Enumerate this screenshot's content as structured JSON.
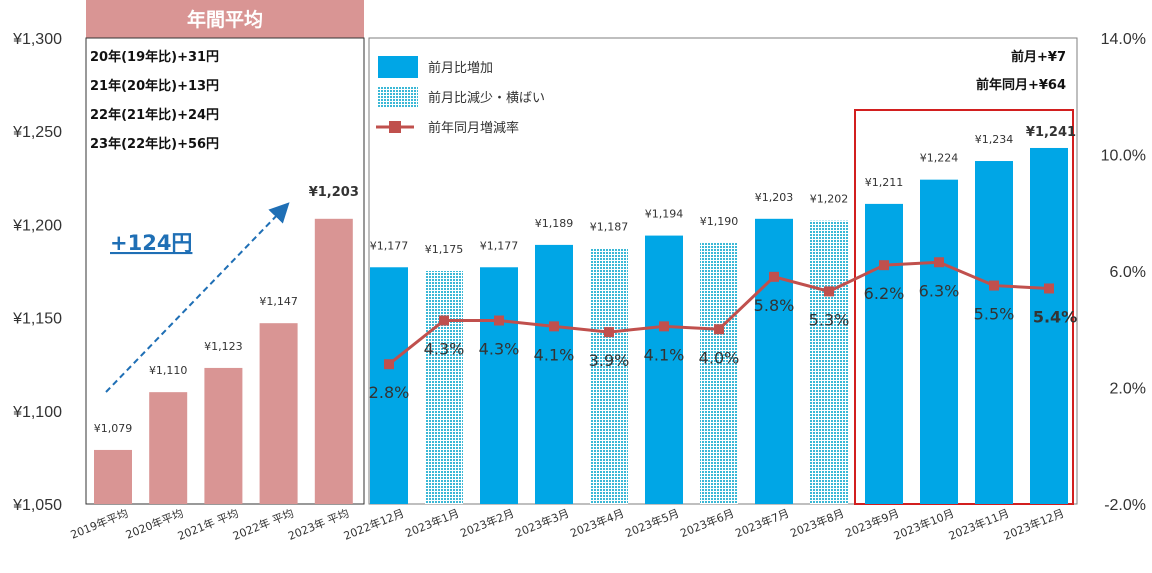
{
  "chart_data": {
    "type": "bar",
    "panel_title": "年間平均",
    "categories": [
      "2019年平均",
      "2020年平均",
      "2021年 平均",
      "2022年 平均",
      "2023年 平均",
      "2022年12月",
      "2023年1月",
      "2023年2月",
      "2023年3月",
      "2023年4月",
      "2023年5月",
      "2023年6月",
      "2023年7月",
      "2023年8月",
      "2023年9月",
      "2023年10月",
      "2023年11月",
      "2023年12月"
    ],
    "values": [
      1079,
      1110,
      1123,
      1147,
      1203,
      1177,
      1175,
      1177,
      1189,
      1187,
      1194,
      1190,
      1203,
      1202,
      1211,
      1224,
      1234,
      1241
    ],
    "value_labels": [
      "¥1,079",
      "¥1,110",
      "¥1,123",
      "¥1,147",
      "¥1,203",
      "¥1,177",
      "¥1,175",
      "¥1,177",
      "¥1,189",
      "¥1,187",
      "¥1,194",
      "¥1,190",
      "¥1,203",
      "¥1,202",
      "¥1,211",
      "¥1,224",
      "¥1,234",
      "¥1,241"
    ],
    "bar_kind": [
      "annual",
      "annual",
      "annual",
      "annual",
      "annual",
      "up",
      "down",
      "up",
      "up",
      "down",
      "up",
      "down",
      "up",
      "down",
      "up",
      "up",
      "up",
      "up"
    ],
    "yoy_rate": [
      null,
      null,
      null,
      null,
      null,
      2.8,
      4.3,
      4.3,
      4.1,
      3.9,
      4.1,
      4.0,
      5.8,
      5.3,
      6.2,
      6.3,
      5.5,
      5.4
    ],
    "yoy_labels": [
      "",
      "",
      "",
      "",
      "",
      "2.8%",
      "4.3%",
      "4.3%",
      "4.1%",
      "3.9%",
      "4.1%",
      "4.0%",
      "5.8%",
      "5.3%",
      "6.2%",
      "6.3%",
      "5.5%",
      "5.4%"
    ],
    "ylim": [
      1050,
      1300
    ],
    "y_ticks": [
      "¥1,050",
      "¥1,100",
      "¥1,150",
      "¥1,200",
      "¥1,250",
      "¥1,300"
    ],
    "y2lim": [
      -2.0,
      14.0
    ],
    "y2_ticks": [
      "-2.0%",
      "2.0%",
      "6.0%",
      "10.0%",
      "14.0%"
    ],
    "legend": [
      "前月比増加",
      "前月比減少・横ばい",
      "前年同月増減率"
    ],
    "legend_position": "top-left",
    "annual_notes": [
      "20年(19年比)+31円",
      "21年(20年比)+13円",
      "22年(21年比)+24円",
      "23年(22年比)+56円"
    ],
    "trend_label": "+124円",
    "notes_right": [
      "前月+¥7",
      "前年同月+¥64"
    ],
    "colors": {
      "annual": "#d99594",
      "header": "#d99594",
      "up": "#00a6e6",
      "down_pattern": "#3bb8d6",
      "line": "#c0504d",
      "trend": "#1f6fb5",
      "highlight": "#d21f1f"
    }
  }
}
